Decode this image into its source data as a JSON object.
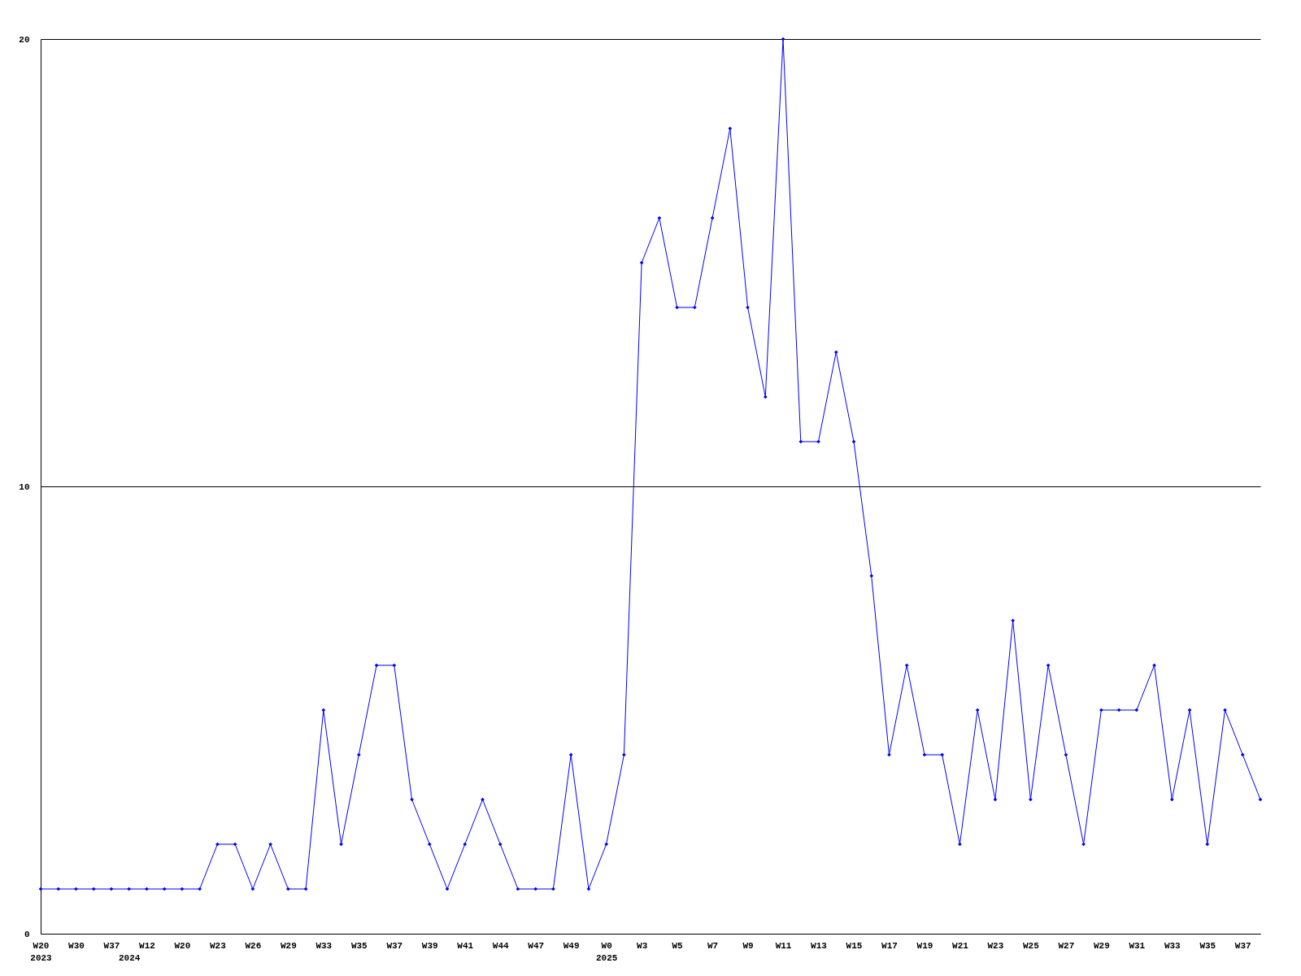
{
  "chart_data": {
    "type": "line",
    "categories": [
      "W20\n2023",
      null,
      "W30",
      null,
      "W37",
      "\n2024",
      "W12",
      null,
      "W20",
      null,
      "W23",
      null,
      "W26",
      null,
      "W29",
      null,
      "W33",
      null,
      "W35",
      null,
      "W37",
      null,
      "W39",
      null,
      "W41",
      null,
      "W44",
      null,
      "W47",
      null,
      "W49",
      null,
      "W0\n2025",
      null,
      "W3",
      null,
      "W5",
      null,
      "W7",
      null,
      "W9",
      null,
      "W11",
      null,
      "W13",
      null,
      "W15",
      null,
      "W17",
      null,
      "W19",
      null,
      "W21",
      null,
      "W23",
      null,
      "W25",
      null,
      "W27",
      null,
      "W29",
      null,
      "W31",
      null,
      "W33",
      null,
      "W35",
      null,
      "W37",
      null
    ],
    "series": [
      {
        "color": "#0000ff",
        "values": [
          1,
          1,
          1,
          1,
          1,
          1,
          1,
          1,
          1,
          1,
          2,
          2,
          1,
          2,
          1,
          1,
          5,
          2,
          4,
          6,
          6,
          3,
          2,
          1,
          2,
          3,
          2,
          1,
          1,
          1,
          4,
          1,
          2,
          4,
          15,
          16,
          14,
          14,
          16,
          18,
          14,
          12,
          20,
          11,
          11,
          13,
          11,
          8,
          4,
          6,
          4,
          4,
          2,
          5,
          3,
          7,
          3,
          6,
          4,
          2,
          5,
          5,
          5,
          6,
          3,
          5,
          2,
          5,
          4,
          3
        ]
      }
    ],
    "ylim": [
      0,
      20
    ],
    "yticks": [
      0,
      10,
      20
    ],
    "grid": "y",
    "marker": "diamond"
  }
}
